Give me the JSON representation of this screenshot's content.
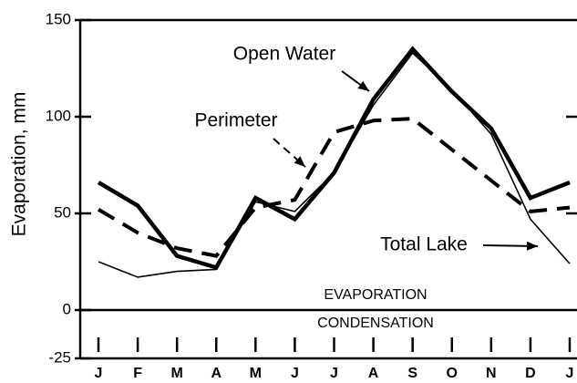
{
  "chart_data": {
    "type": "line",
    "y_label": "Evaporation, mm",
    "categories": [
      "J",
      "F",
      "M",
      "A",
      "M",
      "J",
      "J",
      "A",
      "S",
      "O",
      "N",
      "D",
      "J"
    ],
    "ylim": [
      -25,
      150
    ],
    "yticks": [
      -25,
      0,
      50,
      100,
      150
    ],
    "series": [
      {
        "name": "Open Water",
        "color": "#000000",
        "style": "thick",
        "values": [
          66,
          54,
          28,
          22,
          58,
          47,
          71,
          109,
          135,
          113,
          94,
          58,
          66
        ]
      },
      {
        "name": "Perimeter",
        "color": "#000000",
        "style": "dashed",
        "values": [
          52,
          40,
          32,
          28,
          53,
          57,
          92,
          98,
          99,
          83,
          67,
          51,
          53
        ]
      },
      {
        "name": "Total Lake",
        "color": "#000000",
        "style": "thin",
        "values": [
          25,
          17,
          20,
          21,
          56,
          51,
          71,
          106,
          133,
          114,
          91,
          47,
          24
        ]
      }
    ],
    "region_labels": [
      "EVAPORATION",
      "CONDENSATION"
    ]
  }
}
